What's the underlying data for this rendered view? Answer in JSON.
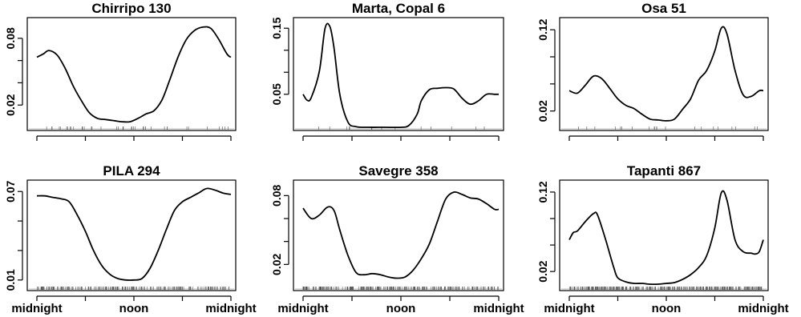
{
  "chart_data": [
    {
      "type": "line",
      "title": "Chirripo 130",
      "x_ticks": [
        "midnight",
        "noon",
        "midnight"
      ],
      "show_x_labels": false,
      "y_ticks": [
        0.02,
        0.08
      ],
      "ylim": [
        0.0,
        0.095
      ],
      "x": [
        0.0,
        0.8,
        1.5,
        2.5,
        3.5,
        4.5,
        5.5,
        6.5,
        7.5,
        8.5,
        9.5,
        10.5,
        11.5,
        12.5,
        13.5,
        14.5,
        15.5,
        16.5,
        17.5,
        18.5,
        19.5,
        20.5,
        21.5,
        22.5,
        23.5,
        24.0
      ],
      "y": [
        0.063,
        0.066,
        0.069,
        0.065,
        0.053,
        0.037,
        0.024,
        0.013,
        0.008,
        0.007,
        0.006,
        0.005,
        0.005,
        0.008,
        0.012,
        0.015,
        0.025,
        0.044,
        0.064,
        0.079,
        0.087,
        0.09,
        0.089,
        0.079,
        0.066,
        0.063
      ]
    },
    {
      "type": "line",
      "title": "Marta, Copal 6",
      "x_ticks": [
        "midnight",
        "noon",
        "midnight"
      ],
      "show_x_labels": false,
      "y_ticks": [
        0.05,
        0.15
      ],
      "ylim": [
        0.0,
        0.16
      ],
      "x": [
        0.0,
        0.5,
        1.0,
        2.0,
        2.7,
        3.3,
        3.8,
        4.5,
        5.5,
        6.5,
        8.0,
        10.0,
        12.0,
        13.0,
        14.0,
        14.5,
        15.5,
        16.5,
        17.5,
        18.5,
        19.5,
        20.5,
        21.5,
        22.5,
        23.5,
        24.0
      ],
      "y": [
        0.05,
        0.041,
        0.045,
        0.085,
        0.15,
        0.152,
        0.12,
        0.05,
        0.008,
        0.001,
        0.0,
        0.0,
        0.0,
        0.003,
        0.02,
        0.04,
        0.057,
        0.059,
        0.06,
        0.058,
        0.044,
        0.035,
        0.04,
        0.05,
        0.05,
        0.05
      ]
    },
    {
      "type": "line",
      "title": "Osa 51",
      "x_ticks": [
        "midnight",
        "noon",
        "midnight"
      ],
      "show_x_labels": false,
      "y_ticks": [
        0.02,
        0.12
      ],
      "ylim": [
        0.0,
        0.13
      ],
      "x": [
        0.0,
        1.0,
        2.0,
        3.0,
        4.0,
        5.0,
        6.0,
        7.0,
        8.0,
        9.0,
        10.0,
        11.0,
        12.0,
        13.0,
        14.0,
        15.0,
        16.0,
        17.0,
        18.0,
        18.8,
        19.5,
        20.5,
        21.5,
        22.5,
        23.5,
        24.0
      ],
      "y": [
        0.045,
        0.042,
        0.052,
        0.063,
        0.06,
        0.048,
        0.035,
        0.027,
        0.023,
        0.016,
        0.01,
        0.009,
        0.008,
        0.01,
        0.022,
        0.035,
        0.058,
        0.07,
        0.094,
        0.122,
        0.115,
        0.07,
        0.04,
        0.038,
        0.045,
        0.045
      ]
    },
    {
      "type": "line",
      "title": "PILA 294",
      "x_ticks": [
        "midnight",
        "noon",
        "midnight"
      ],
      "show_x_labels": true,
      "y_ticks": [
        0.01,
        0.07
      ],
      "ylim": [
        0.005,
        0.075
      ],
      "x": [
        0.0,
        1.0,
        2.0,
        3.0,
        4.0,
        5.0,
        6.0,
        7.0,
        8.0,
        9.0,
        10.0,
        11.0,
        12.0,
        13.0,
        14.0,
        15.0,
        16.0,
        17.0,
        18.0,
        19.0,
        20.0,
        21.0,
        22.0,
        23.0,
        24.0
      ],
      "y": [
        0.067,
        0.067,
        0.066,
        0.065,
        0.063,
        0.054,
        0.043,
        0.03,
        0.02,
        0.014,
        0.011,
        0.01,
        0.01,
        0.011,
        0.018,
        0.03,
        0.044,
        0.057,
        0.063,
        0.066,
        0.069,
        0.072,
        0.071,
        0.069,
        0.068
      ]
    },
    {
      "type": "line",
      "title": "Savegre 358",
      "x_ticks": [
        "midnight",
        "noon",
        "midnight"
      ],
      "show_x_labels": true,
      "y_ticks": [
        0.02,
        0.08
      ],
      "ylim": [
        0.0,
        0.09
      ],
      "x": [
        0.0,
        1.0,
        2.0,
        3.0,
        3.8,
        4.5,
        5.5,
        6.5,
        7.5,
        8.5,
        9.5,
        10.5,
        11.5,
        12.5,
        13.5,
        14.5,
        15.5,
        16.5,
        17.5,
        18.5,
        19.5,
        20.5,
        21.5,
        22.5,
        23.5,
        24.0
      ],
      "y": [
        0.069,
        0.06,
        0.063,
        0.07,
        0.067,
        0.05,
        0.028,
        0.013,
        0.011,
        0.012,
        0.011,
        0.009,
        0.008,
        0.009,
        0.015,
        0.025,
        0.038,
        0.058,
        0.077,
        0.083,
        0.081,
        0.078,
        0.077,
        0.073,
        0.068,
        0.068
      ]
    },
    {
      "type": "line",
      "title": "Tapanti 867",
      "x_ticks": [
        "midnight",
        "noon",
        "midnight"
      ],
      "show_x_labels": true,
      "y_ticks": [
        0.02,
        0.12
      ],
      "ylim": [
        0.0,
        0.13
      ],
      "x": [
        0.0,
        0.5,
        1.0,
        2.0,
        3.0,
        3.5,
        4.5,
        5.5,
        6.0,
        7.0,
        8.0,
        9.0,
        10.0,
        11.0,
        12.0,
        13.0,
        14.0,
        15.0,
        16.0,
        17.0,
        18.0,
        18.8,
        19.5,
        20.5,
        21.5,
        22.5,
        23.0,
        23.5,
        24.0
      ],
      "y": [
        0.06,
        0.069,
        0.071,
        0.083,
        0.093,
        0.091,
        0.06,
        0.025,
        0.012,
        0.007,
        0.005,
        0.005,
        0.004,
        0.004,
        0.005,
        0.006,
        0.01,
        0.016,
        0.025,
        0.04,
        0.075,
        0.119,
        0.11,
        0.06,
        0.045,
        0.043,
        0.042,
        0.045,
        0.06
      ]
    }
  ]
}
